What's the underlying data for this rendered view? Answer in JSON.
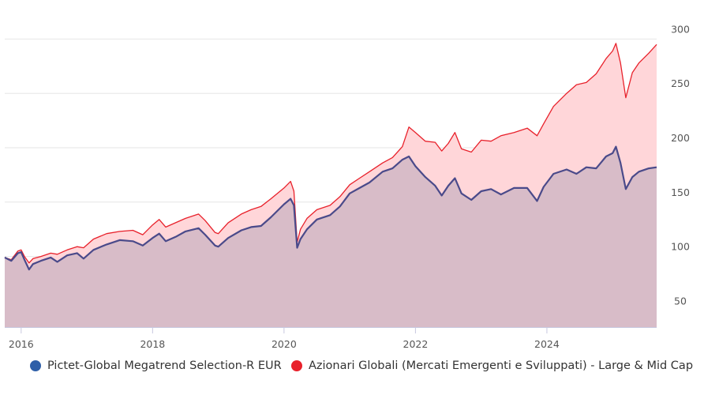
{
  "chart_data": {
    "type": "area",
    "xlim": [
      2015.75,
      2025.67
    ],
    "ylim": [
      35,
      325
    ],
    "x_ticks": [
      2016,
      2018,
      2020,
      2022,
      2024
    ],
    "x_tick_labels": [
      "2016",
      "2018",
      "2020",
      "2022",
      "2024"
    ],
    "y_ticks": [
      50,
      100,
      150,
      200,
      250,
      300
    ],
    "y_tick_labels": [
      "50",
      "100",
      "150",
      "200",
      "250",
      "300"
    ],
    "grid": "horizontal",
    "legend_position": "bottom",
    "series": [
      {
        "name": "Pictet-Global Megatrend Selection-R EUR",
        "color": "#4a4a8a",
        "legend_color": "#2e5fa8",
        "fill": "#d8bcc8",
        "points": [
          [
            2015.75,
            99
          ],
          [
            2015.85,
            96
          ],
          [
            2015.95,
            103
          ],
          [
            2016.0,
            104
          ],
          [
            2016.05,
            97
          ],
          [
            2016.12,
            88
          ],
          [
            2016.18,
            93
          ],
          [
            2016.3,
            96
          ],
          [
            2016.45,
            99
          ],
          [
            2016.55,
            95
          ],
          [
            2016.7,
            101
          ],
          [
            2016.85,
            103
          ],
          [
            2016.95,
            98
          ],
          [
            2017.1,
            106
          ],
          [
            2017.3,
            111
          ],
          [
            2017.5,
            115
          ],
          [
            2017.7,
            114
          ],
          [
            2017.85,
            110
          ],
          [
            2018.0,
            117
          ],
          [
            2018.1,
            121
          ],
          [
            2018.2,
            114
          ],
          [
            2018.35,
            118
          ],
          [
            2018.5,
            123
          ],
          [
            2018.7,
            126
          ],
          [
            2018.8,
            120
          ],
          [
            2018.95,
            110
          ],
          [
            2019.0,
            109
          ],
          [
            2019.15,
            117
          ],
          [
            2019.35,
            124
          ],
          [
            2019.5,
            127
          ],
          [
            2019.65,
            128
          ],
          [
            2019.8,
            136
          ],
          [
            2020.0,
            148
          ],
          [
            2020.1,
            153
          ],
          [
            2020.15,
            147
          ],
          [
            2020.2,
            108
          ],
          [
            2020.25,
            116
          ],
          [
            2020.35,
            125
          ],
          [
            2020.5,
            134
          ],
          [
            2020.7,
            138
          ],
          [
            2020.85,
            146
          ],
          [
            2021.0,
            158
          ],
          [
            2021.15,
            163
          ],
          [
            2021.3,
            168
          ],
          [
            2021.5,
            178
          ],
          [
            2021.65,
            181
          ],
          [
            2021.8,
            189
          ],
          [
            2021.9,
            192
          ],
          [
            2022.0,
            183
          ],
          [
            2022.15,
            173
          ],
          [
            2022.3,
            165
          ],
          [
            2022.4,
            156
          ],
          [
            2022.5,
            165
          ],
          [
            2022.6,
            172
          ],
          [
            2022.7,
            158
          ],
          [
            2022.85,
            152
          ],
          [
            2023.0,
            160
          ],
          [
            2023.15,
            162
          ],
          [
            2023.3,
            157
          ],
          [
            2023.5,
            163
          ],
          [
            2023.7,
            163
          ],
          [
            2023.85,
            151
          ],
          [
            2023.95,
            164
          ],
          [
            2024.1,
            176
          ],
          [
            2024.3,
            180
          ],
          [
            2024.45,
            176
          ],
          [
            2024.6,
            182
          ],
          [
            2024.75,
            181
          ],
          [
            2024.9,
            192
          ],
          [
            2025.0,
            195
          ],
          [
            2025.05,
            201
          ],
          [
            2025.12,
            186
          ],
          [
            2025.2,
            162
          ],
          [
            2025.3,
            173
          ],
          [
            2025.4,
            178
          ],
          [
            2025.55,
            181
          ],
          [
            2025.67,
            182
          ]
        ]
      },
      {
        "name": "Azionari Globali (Mercati Emergenti e Sviluppati) - Large & Mid Cap",
        "color": "#e8212b",
        "legend_color": "#e8212b",
        "fill": "#ffd6d9",
        "points": [
          [
            2015.75,
            99
          ],
          [
            2015.85,
            97
          ],
          [
            2015.95,
            105
          ],
          [
            2016.0,
            106
          ],
          [
            2016.05,
            100
          ],
          [
            2016.12,
            94
          ],
          [
            2016.18,
            98
          ],
          [
            2016.3,
            100
          ],
          [
            2016.45,
            103
          ],
          [
            2016.55,
            102
          ],
          [
            2016.7,
            106
          ],
          [
            2016.85,
            109
          ],
          [
            2016.95,
            108
          ],
          [
            2017.1,
            116
          ],
          [
            2017.3,
            121
          ],
          [
            2017.5,
            123
          ],
          [
            2017.7,
            124
          ],
          [
            2017.85,
            120
          ],
          [
            2018.0,
            129
          ],
          [
            2018.1,
            134
          ],
          [
            2018.2,
            127
          ],
          [
            2018.35,
            131
          ],
          [
            2018.5,
            135
          ],
          [
            2018.7,
            139
          ],
          [
            2018.8,
            133
          ],
          [
            2018.95,
            122
          ],
          [
            2019.0,
            121
          ],
          [
            2019.15,
            131
          ],
          [
            2019.35,
            139
          ],
          [
            2019.5,
            143
          ],
          [
            2019.65,
            146
          ],
          [
            2019.8,
            153
          ],
          [
            2020.0,
            163
          ],
          [
            2020.1,
            169
          ],
          [
            2020.15,
            160
          ],
          [
            2020.2,
            113
          ],
          [
            2020.25,
            125
          ],
          [
            2020.35,
            135
          ],
          [
            2020.5,
            143
          ],
          [
            2020.7,
            147
          ],
          [
            2020.85,
            155
          ],
          [
            2021.0,
            166
          ],
          [
            2021.15,
            172
          ],
          [
            2021.3,
            178
          ],
          [
            2021.5,
            186
          ],
          [
            2021.65,
            191
          ],
          [
            2021.8,
            201
          ],
          [
            2021.9,
            219
          ],
          [
            2022.0,
            214
          ],
          [
            2022.15,
            206
          ],
          [
            2022.3,
            205
          ],
          [
            2022.4,
            197
          ],
          [
            2022.5,
            204
          ],
          [
            2022.6,
            214
          ],
          [
            2022.7,
            199
          ],
          [
            2022.85,
            196
          ],
          [
            2023.0,
            207
          ],
          [
            2023.15,
            206
          ],
          [
            2023.3,
            211
          ],
          [
            2023.5,
            214
          ],
          [
            2023.7,
            218
          ],
          [
            2023.85,
            211
          ],
          [
            2023.95,
            222
          ],
          [
            2024.1,
            238
          ],
          [
            2024.3,
            250
          ],
          [
            2024.45,
            258
          ],
          [
            2024.6,
            260
          ],
          [
            2024.75,
            268
          ],
          [
            2024.9,
            282
          ],
          [
            2025.0,
            289
          ],
          [
            2025.05,
            296
          ],
          [
            2025.12,
            278
          ],
          [
            2025.2,
            246
          ],
          [
            2025.3,
            269
          ],
          [
            2025.4,
            278
          ],
          [
            2025.55,
            287
          ],
          [
            2025.67,
            295
          ]
        ]
      }
    ]
  }
}
